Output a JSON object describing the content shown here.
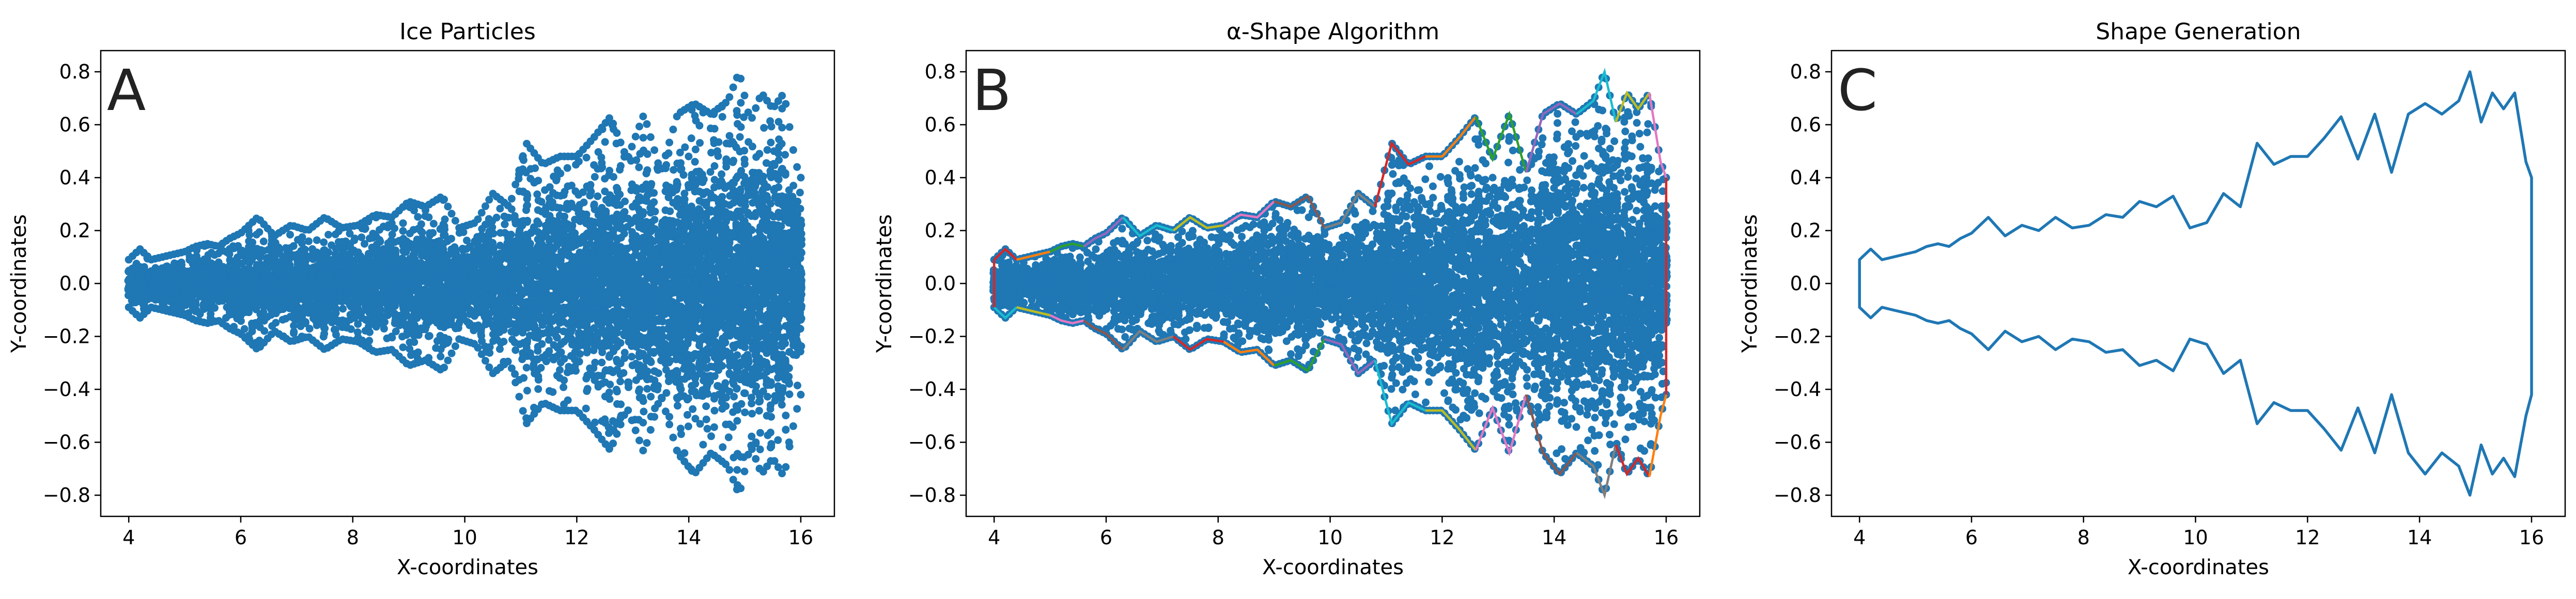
{
  "chart_data": [
    {
      "type": "scatter",
      "title": "Ice Particles",
      "panel_letter": "A",
      "xlabel": "X-coordinates",
      "ylabel": "Y-coordinates",
      "xlim": [
        3.5,
        16.6
      ],
      "ylim": [
        -0.88,
        0.88
      ],
      "xticks": [
        4,
        6,
        8,
        10,
        12,
        14,
        16
      ],
      "yticks": [
        -0.8,
        -0.6,
        -0.4,
        -0.2,
        0.0,
        0.2,
        0.4,
        0.6,
        0.8
      ],
      "point_color": "#1f77b4",
      "x_range": [
        4,
        16
      ],
      "envelope": {
        "x": [
          4.0,
          4.1,
          4.2,
          4.4,
          4.6,
          4.8,
          5.0,
          5.2,
          5.4,
          5.6,
          5.8,
          6.0,
          6.3,
          6.6,
          6.9,
          7.2,
          7.5,
          7.8,
          8.1,
          8.4,
          8.7,
          9.0,
          9.3,
          9.6,
          9.9,
          10.2,
          10.5,
          10.8,
          11.1,
          11.4,
          11.7,
          12.0,
          12.3,
          12.6,
          12.9,
          13.2,
          13.5,
          13.8,
          14.1,
          14.4,
          14.7,
          14.9,
          15.1,
          15.3,
          15.5,
          15.7,
          15.9,
          16.0
        ],
        "upper": [
          0.09,
          0.11,
          0.13,
          0.09,
          0.1,
          0.11,
          0.12,
          0.14,
          0.15,
          0.14,
          0.17,
          0.19,
          0.25,
          0.18,
          0.22,
          0.2,
          0.25,
          0.21,
          0.22,
          0.26,
          0.25,
          0.31,
          0.29,
          0.33,
          0.21,
          0.23,
          0.34,
          0.29,
          0.53,
          0.45,
          0.48,
          0.48,
          0.55,
          0.63,
          0.47,
          0.64,
          0.42,
          0.64,
          0.68,
          0.64,
          0.69,
          0.8,
          0.61,
          0.72,
          0.66,
          0.72,
          0.46,
          0.4
        ],
        "lower": [
          -0.09,
          -0.11,
          -0.13,
          -0.09,
          -0.1,
          -0.11,
          -0.12,
          -0.14,
          -0.15,
          -0.14,
          -0.17,
          -0.19,
          -0.25,
          -0.18,
          -0.22,
          -0.2,
          -0.25,
          -0.21,
          -0.22,
          -0.26,
          -0.25,
          -0.31,
          -0.29,
          -0.33,
          -0.21,
          -0.23,
          -0.34,
          -0.29,
          -0.53,
          -0.45,
          -0.48,
          -0.48,
          -0.55,
          -0.63,
          -0.47,
          -0.64,
          -0.42,
          -0.64,
          -0.72,
          -0.64,
          -0.69,
          -0.8,
          -0.61,
          -0.72,
          -0.66,
          -0.73,
          -0.5,
          -0.42
        ]
      }
    },
    {
      "type": "scatter+line",
      "title": "α-Shape Algorithm",
      "panel_letter": "B",
      "xlabel": "X-coordinates",
      "ylabel": "Y-coordinates",
      "xlim": [
        3.5,
        16.6
      ],
      "ylim": [
        -0.88,
        0.88
      ],
      "xticks": [
        4,
        6,
        8,
        10,
        12,
        14,
        16
      ],
      "yticks": [
        -0.8,
        -0.6,
        -0.4,
        -0.2,
        0.0,
        0.2,
        0.4,
        0.6,
        0.8
      ],
      "point_color": "#1f77b4",
      "boundary_colors": [
        "#d62728",
        "#ff7f0e",
        "#2ca02c",
        "#9467bd",
        "#17becf",
        "#bcbd22",
        "#e377c2",
        "#8c564b",
        "#7f7f7f"
      ],
      "x_range": [
        4,
        16
      ],
      "envelope": {
        "x": [
          4.0,
          4.1,
          4.2,
          4.4,
          4.6,
          4.8,
          5.0,
          5.2,
          5.4,
          5.6,
          5.8,
          6.0,
          6.3,
          6.6,
          6.9,
          7.2,
          7.5,
          7.8,
          8.1,
          8.4,
          8.7,
          9.0,
          9.3,
          9.6,
          9.9,
          10.2,
          10.5,
          10.8,
          11.1,
          11.4,
          11.7,
          12.0,
          12.3,
          12.6,
          12.9,
          13.2,
          13.5,
          13.8,
          14.1,
          14.4,
          14.7,
          14.9,
          15.1,
          15.3,
          15.5,
          15.7,
          15.9,
          16.0
        ],
        "upper": [
          0.09,
          0.11,
          0.13,
          0.09,
          0.1,
          0.11,
          0.12,
          0.14,
          0.15,
          0.14,
          0.17,
          0.19,
          0.25,
          0.18,
          0.22,
          0.2,
          0.25,
          0.21,
          0.22,
          0.26,
          0.25,
          0.31,
          0.29,
          0.33,
          0.21,
          0.23,
          0.34,
          0.29,
          0.53,
          0.45,
          0.48,
          0.48,
          0.55,
          0.63,
          0.47,
          0.64,
          0.42,
          0.64,
          0.68,
          0.64,
          0.69,
          0.8,
          0.61,
          0.72,
          0.66,
          0.72,
          0.46,
          0.4
        ],
        "lower": [
          -0.09,
          -0.11,
          -0.13,
          -0.09,
          -0.1,
          -0.11,
          -0.12,
          -0.14,
          -0.15,
          -0.14,
          -0.17,
          -0.19,
          -0.25,
          -0.18,
          -0.22,
          -0.2,
          -0.25,
          -0.21,
          -0.22,
          -0.26,
          -0.25,
          -0.31,
          -0.29,
          -0.33,
          -0.21,
          -0.23,
          -0.34,
          -0.29,
          -0.53,
          -0.45,
          -0.48,
          -0.48,
          -0.55,
          -0.63,
          -0.47,
          -0.64,
          -0.42,
          -0.64,
          -0.72,
          -0.64,
          -0.69,
          -0.8,
          -0.61,
          -0.72,
          -0.66,
          -0.73,
          -0.5,
          -0.42
        ]
      }
    },
    {
      "type": "line",
      "title": "Shape Generation",
      "panel_letter": "C",
      "xlabel": "X-coordinates",
      "ylabel": "Y-coordinates",
      "xlim": [
        3.5,
        16.6
      ],
      "ylim": [
        -0.88,
        0.88
      ],
      "xticks": [
        4,
        6,
        8,
        10,
        12,
        14,
        16
      ],
      "yticks": [
        -0.8,
        -0.6,
        -0.4,
        -0.2,
        0.0,
        0.2,
        0.4,
        0.6,
        0.8
      ],
      "line_color": "#1f77b4",
      "outline": {
        "x": [
          4.0,
          4.1,
          4.2,
          4.4,
          4.6,
          4.8,
          5.0,
          5.2,
          5.4,
          5.6,
          5.8,
          6.0,
          6.3,
          6.6,
          6.9,
          7.2,
          7.5,
          7.8,
          8.1,
          8.4,
          8.7,
          9.0,
          9.3,
          9.6,
          9.9,
          10.2,
          10.5,
          10.8,
          11.1,
          11.4,
          11.7,
          12.0,
          12.3,
          12.6,
          12.9,
          13.2,
          13.5,
          13.8,
          14.1,
          14.4,
          14.7,
          14.9,
          15.1,
          15.3,
          15.5,
          15.7,
          15.9,
          16.0
        ],
        "upper": [
          0.09,
          0.11,
          0.13,
          0.09,
          0.1,
          0.11,
          0.12,
          0.14,
          0.15,
          0.14,
          0.17,
          0.19,
          0.25,
          0.18,
          0.22,
          0.2,
          0.25,
          0.21,
          0.22,
          0.26,
          0.25,
          0.31,
          0.29,
          0.33,
          0.21,
          0.23,
          0.34,
          0.29,
          0.53,
          0.45,
          0.48,
          0.48,
          0.55,
          0.63,
          0.47,
          0.64,
          0.42,
          0.64,
          0.68,
          0.64,
          0.69,
          0.8,
          0.61,
          0.72,
          0.66,
          0.72,
          0.46,
          0.4
        ],
        "lower": [
          -0.09,
          -0.11,
          -0.13,
          -0.09,
          -0.1,
          -0.11,
          -0.12,
          -0.14,
          -0.15,
          -0.14,
          -0.17,
          -0.19,
          -0.25,
          -0.18,
          -0.22,
          -0.2,
          -0.25,
          -0.21,
          -0.22,
          -0.26,
          -0.25,
          -0.31,
          -0.29,
          -0.33,
          -0.21,
          -0.23,
          -0.34,
          -0.29,
          -0.53,
          -0.45,
          -0.48,
          -0.48,
          -0.55,
          -0.63,
          -0.47,
          -0.64,
          -0.42,
          -0.64,
          -0.72,
          -0.64,
          -0.69,
          -0.8,
          -0.61,
          -0.72,
          -0.66,
          -0.73,
          -0.5,
          -0.42
        ]
      }
    }
  ]
}
